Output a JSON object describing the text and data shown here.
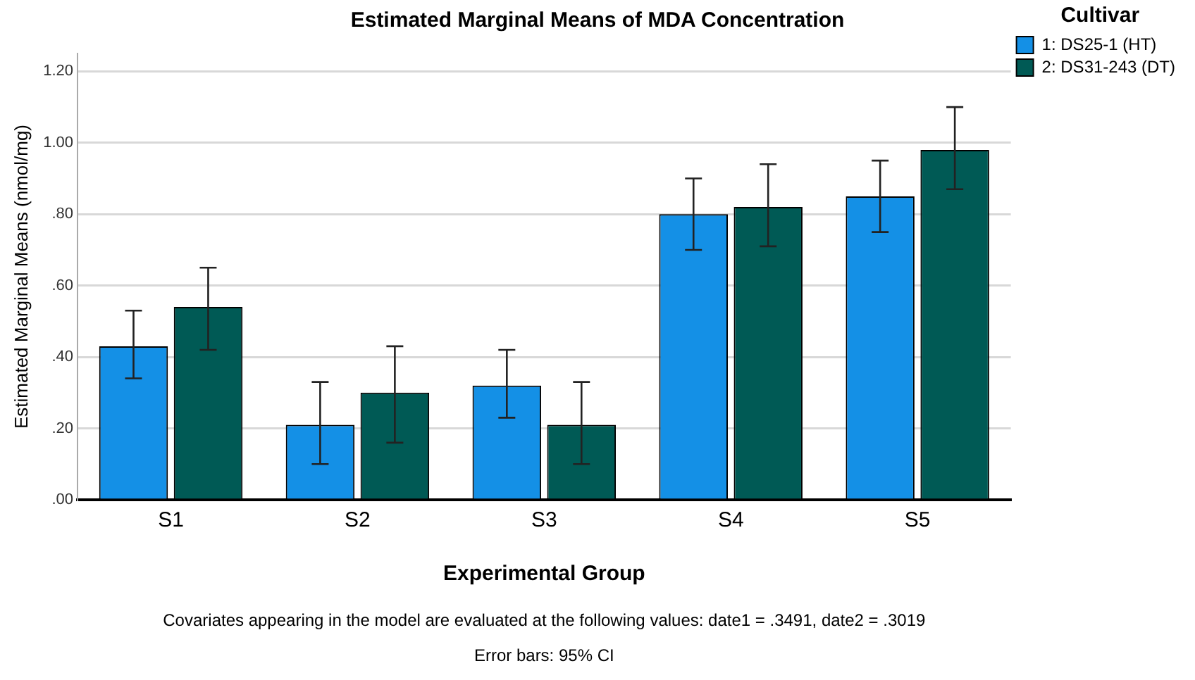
{
  "chart_data": {
    "type": "bar",
    "title": "Estimated Marginal Means of MDA Concentration",
    "xlabel": "Experimental Group",
    "ylabel": "Estimated Marginal Means (nmol/mg)",
    "legend_title": "Cultivar",
    "categories": [
      "S1",
      "S2",
      "S3",
      "S4",
      "S5"
    ],
    "series": [
      {
        "name": "1: DS25-1 (HT)",
        "color": "#1490e6",
        "values": [
          0.43,
          0.21,
          0.32,
          0.8,
          0.85
        ],
        "errors": [
          [
            0.34,
            0.53
          ],
          [
            0.1,
            0.33
          ],
          [
            0.23,
            0.42
          ],
          [
            0.7,
            0.9
          ],
          [
            0.75,
            0.95
          ]
        ]
      },
      {
        "name": "2: DS31-243 (DT)",
        "color": "#005a55",
        "values": [
          0.54,
          0.3,
          0.21,
          0.82,
          0.98
        ],
        "errors": [
          [
            0.42,
            0.65
          ],
          [
            0.16,
            0.43
          ],
          [
            0.1,
            0.33
          ],
          [
            0.71,
            0.94
          ],
          [
            0.87,
            1.1
          ]
        ]
      }
    ],
    "ylim": [
      0,
      1.25
    ],
    "yticks": [
      {
        "value": 0,
        "label": ".00"
      },
      {
        "value": 0.2,
        "label": ".20"
      },
      {
        "value": 0.4,
        "label": ".40"
      },
      {
        "value": 0.6,
        "label": ".60"
      },
      {
        "value": 0.8,
        "label": ".80"
      },
      {
        "value": 1,
        "label": "1.00"
      },
      {
        "value": 1.2,
        "label": "1.20"
      }
    ],
    "grid": "y",
    "legend": "top right",
    "annotations": [
      "Covariates appearing in the model are evaluated at the following values: date1 = .3491, date2 = .3019",
      "Error bars: 95% CI"
    ]
  }
}
